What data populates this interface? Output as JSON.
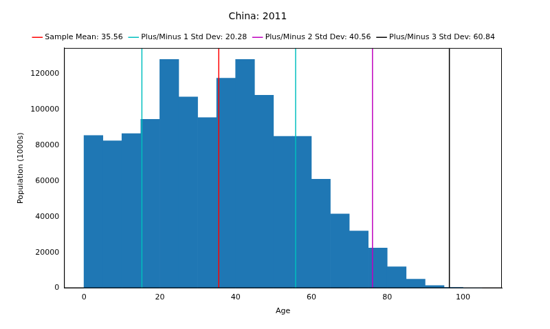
{
  "chart_data": {
    "type": "histogram",
    "title": "China: 2011",
    "x_label": "Age",
    "y_label": "Population (1000s)",
    "bins": [
      0,
      5,
      10,
      15,
      20,
      25,
      30,
      35,
      40,
      45,
      50,
      55,
      60,
      65,
      70,
      75,
      80,
      85,
      90,
      95,
      100,
      105
    ],
    "values": [
      85500,
      82500,
      86500,
      94500,
      128000,
      107000,
      95500,
      117500,
      128000,
      108000,
      85000,
      85000,
      61000,
      41500,
      32000,
      22500,
      12000,
      5000,
      1500,
      400,
      30
    ],
    "color": "#1f77b4",
    "lines": [
      {
        "name": "Sample Mean: 35.56",
        "color": "#ff0000",
        "x": [
          35.56
        ]
      },
      {
        "name": "Plus/Minus 1 Std Dev: 20.28",
        "color": "#00bfbf",
        "x": [
          15.28,
          55.84
        ]
      },
      {
        "name": "Plus/Minus 2 Std Dev: 40.56",
        "color": "#bf00bf",
        "x": [
          76.12
        ]
      },
      {
        "name": "Plus/Minus 3 Std Dev: 60.84",
        "color": "#000000",
        "x": [
          96.4
        ]
      }
    ],
    "xlim": [
      -5.25,
      110.25
    ],
    "xticks": [
      0,
      20,
      40,
      60,
      80,
      100
    ],
    "ylim": [
      0,
      134400
    ],
    "yticks": [
      0,
      20000,
      40000,
      60000,
      80000,
      100000,
      120000
    ],
    "grid": false,
    "legend": "upper right"
  }
}
